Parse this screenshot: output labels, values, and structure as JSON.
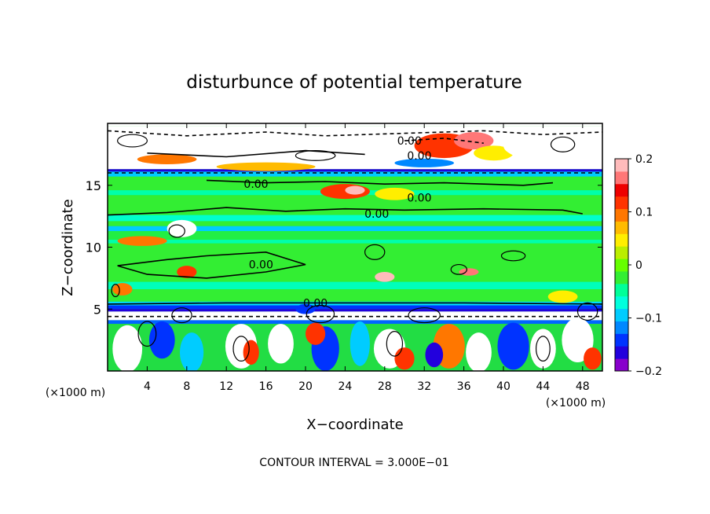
{
  "chart_data": {
    "type": "heatmap",
    "title": "disturbunce of potential temperature",
    "xlabel": "X−coordinate",
    "ylabel": "Z−coordinate",
    "x_unit": "(×1000 m)",
    "x_unit_right": "(×1000 m)",
    "xlim": [
      0,
      50
    ],
    "ylim": [
      0,
      20
    ],
    "x_ticks": [
      4,
      8,
      12,
      16,
      20,
      24,
      28,
      32,
      36,
      40,
      44,
      48
    ],
    "x_tick_labels": [
      "4",
      "8",
      "12",
      "16",
      "20",
      "24",
      "28",
      "32",
      "36",
      "40",
      "44",
      "48"
    ],
    "y_ticks": [
      5,
      10,
      15
    ],
    "y_tick_labels": [
      "5",
      "10",
      "15"
    ],
    "colorbar": {
      "min": -0.2,
      "max": 0.2,
      "ticks": [
        0.2,
        0.1,
        0,
        -0.1,
        -0.2
      ],
      "tick_labels": [
        "0.2",
        "0.1",
        "0",
        "−0.1",
        "−0.2"
      ],
      "colors": [
        "#8800cc",
        "#2200dd",
        "#0033ff",
        "#0088ff",
        "#00ccff",
        "#00ffdd",
        "#00ff99",
        "#33ee33",
        "#66ff00",
        "#bbee00",
        "#ffee00",
        "#ffbb00",
        "#ff7700",
        "#ff3300",
        "#ee0000",
        "#ff7777",
        "#ffbbbb"
      ]
    },
    "contour_labels": [
      "0.00",
      "0.00",
      "0.00",
      "0.00",
      "0.00",
      "0.00",
      "0.00"
    ],
    "contour_interval_text": "CONTOUR INTERVAL = 3.000E−01"
  }
}
